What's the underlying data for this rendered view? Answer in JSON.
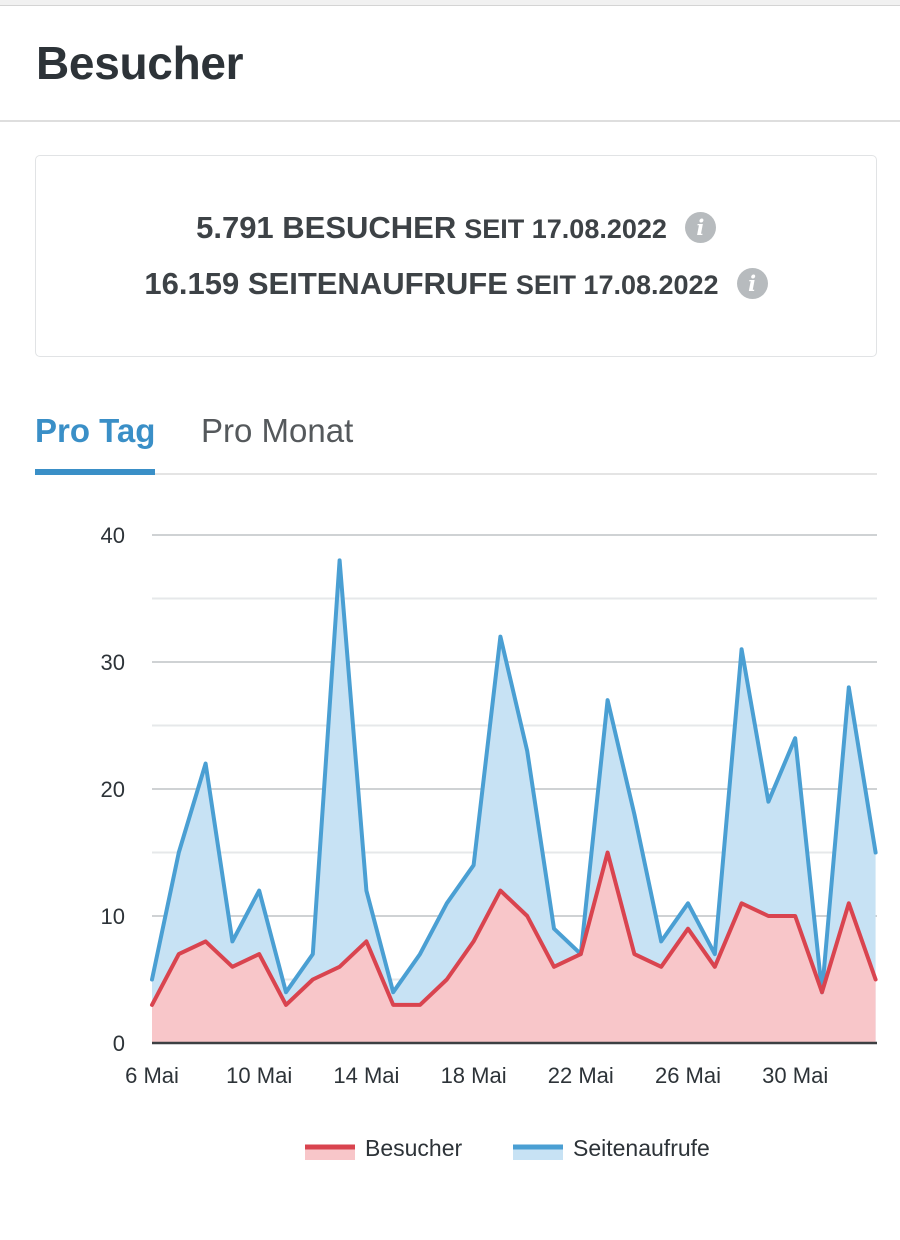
{
  "header": {
    "title": "Besucher"
  },
  "stats": {
    "visitors": {
      "count": "5.791 BESUCHER",
      "since": "SEIT 17.08.2022"
    },
    "pageviews": {
      "count": "16.159 SEITENAUFRUFE",
      "since": "SEIT 17.08.2022"
    },
    "info_symbol": "i"
  },
  "tabs": [
    {
      "label": "Pro Tag",
      "active": true
    },
    {
      "label": "Pro Monat",
      "active": false
    }
  ],
  "colors": {
    "accent": "#3a8fc7",
    "visitors_line": "#d9444f",
    "visitors_fill": "#f8c6c9",
    "pageviews_line": "#4a9fd3",
    "pageviews_fill": "#c7e2f4"
  },
  "chart_data": {
    "type": "area",
    "title": "",
    "xlabel": "",
    "ylabel": "",
    "ylim": [
      0,
      40
    ],
    "yticks": [
      0,
      10,
      20,
      30,
      40
    ],
    "grid": true,
    "legend_position": "bottom",
    "x": [
      "6 Mai",
      "7 Mai",
      "8 Mai",
      "9 Mai",
      "10 Mai",
      "11 Mai",
      "12 Mai",
      "13 Mai",
      "14 Mai",
      "15 Mai",
      "16 Mai",
      "17 Mai",
      "18 Mai",
      "19 Mai",
      "20 Mai",
      "21 Mai",
      "22 Mai",
      "23 Mai",
      "24 Mai",
      "25 Mai",
      "26 Mai",
      "27 Mai",
      "28 Mai",
      "29 Mai",
      "30 Mai",
      "31 Mai",
      "1 Jun",
      "2 Jun"
    ],
    "x_tick_labels": [
      "6 Mai",
      "10 Mai",
      "14 Mai",
      "18 Mai",
      "22 Mai",
      "26 Mai",
      "30 Mai"
    ],
    "x_tick_indices": [
      0,
      4,
      8,
      12,
      16,
      20,
      24
    ],
    "series": [
      {
        "name": "Besucher",
        "values": [
          3,
          7,
          8,
          6,
          7,
          3,
          5,
          6,
          8,
          3,
          3,
          5,
          8,
          12,
          10,
          6,
          7,
          15,
          7,
          6,
          9,
          6,
          11,
          10,
          10,
          4,
          11,
          5
        ]
      },
      {
        "name": "Seitenaufrufe",
        "values": [
          5,
          15,
          22,
          8,
          12,
          4,
          7,
          38,
          12,
          4,
          7,
          11,
          14,
          32,
          23,
          9,
          7,
          27,
          18,
          8,
          11,
          7,
          31,
          19,
          24,
          4,
          28,
          15
        ]
      }
    ]
  }
}
